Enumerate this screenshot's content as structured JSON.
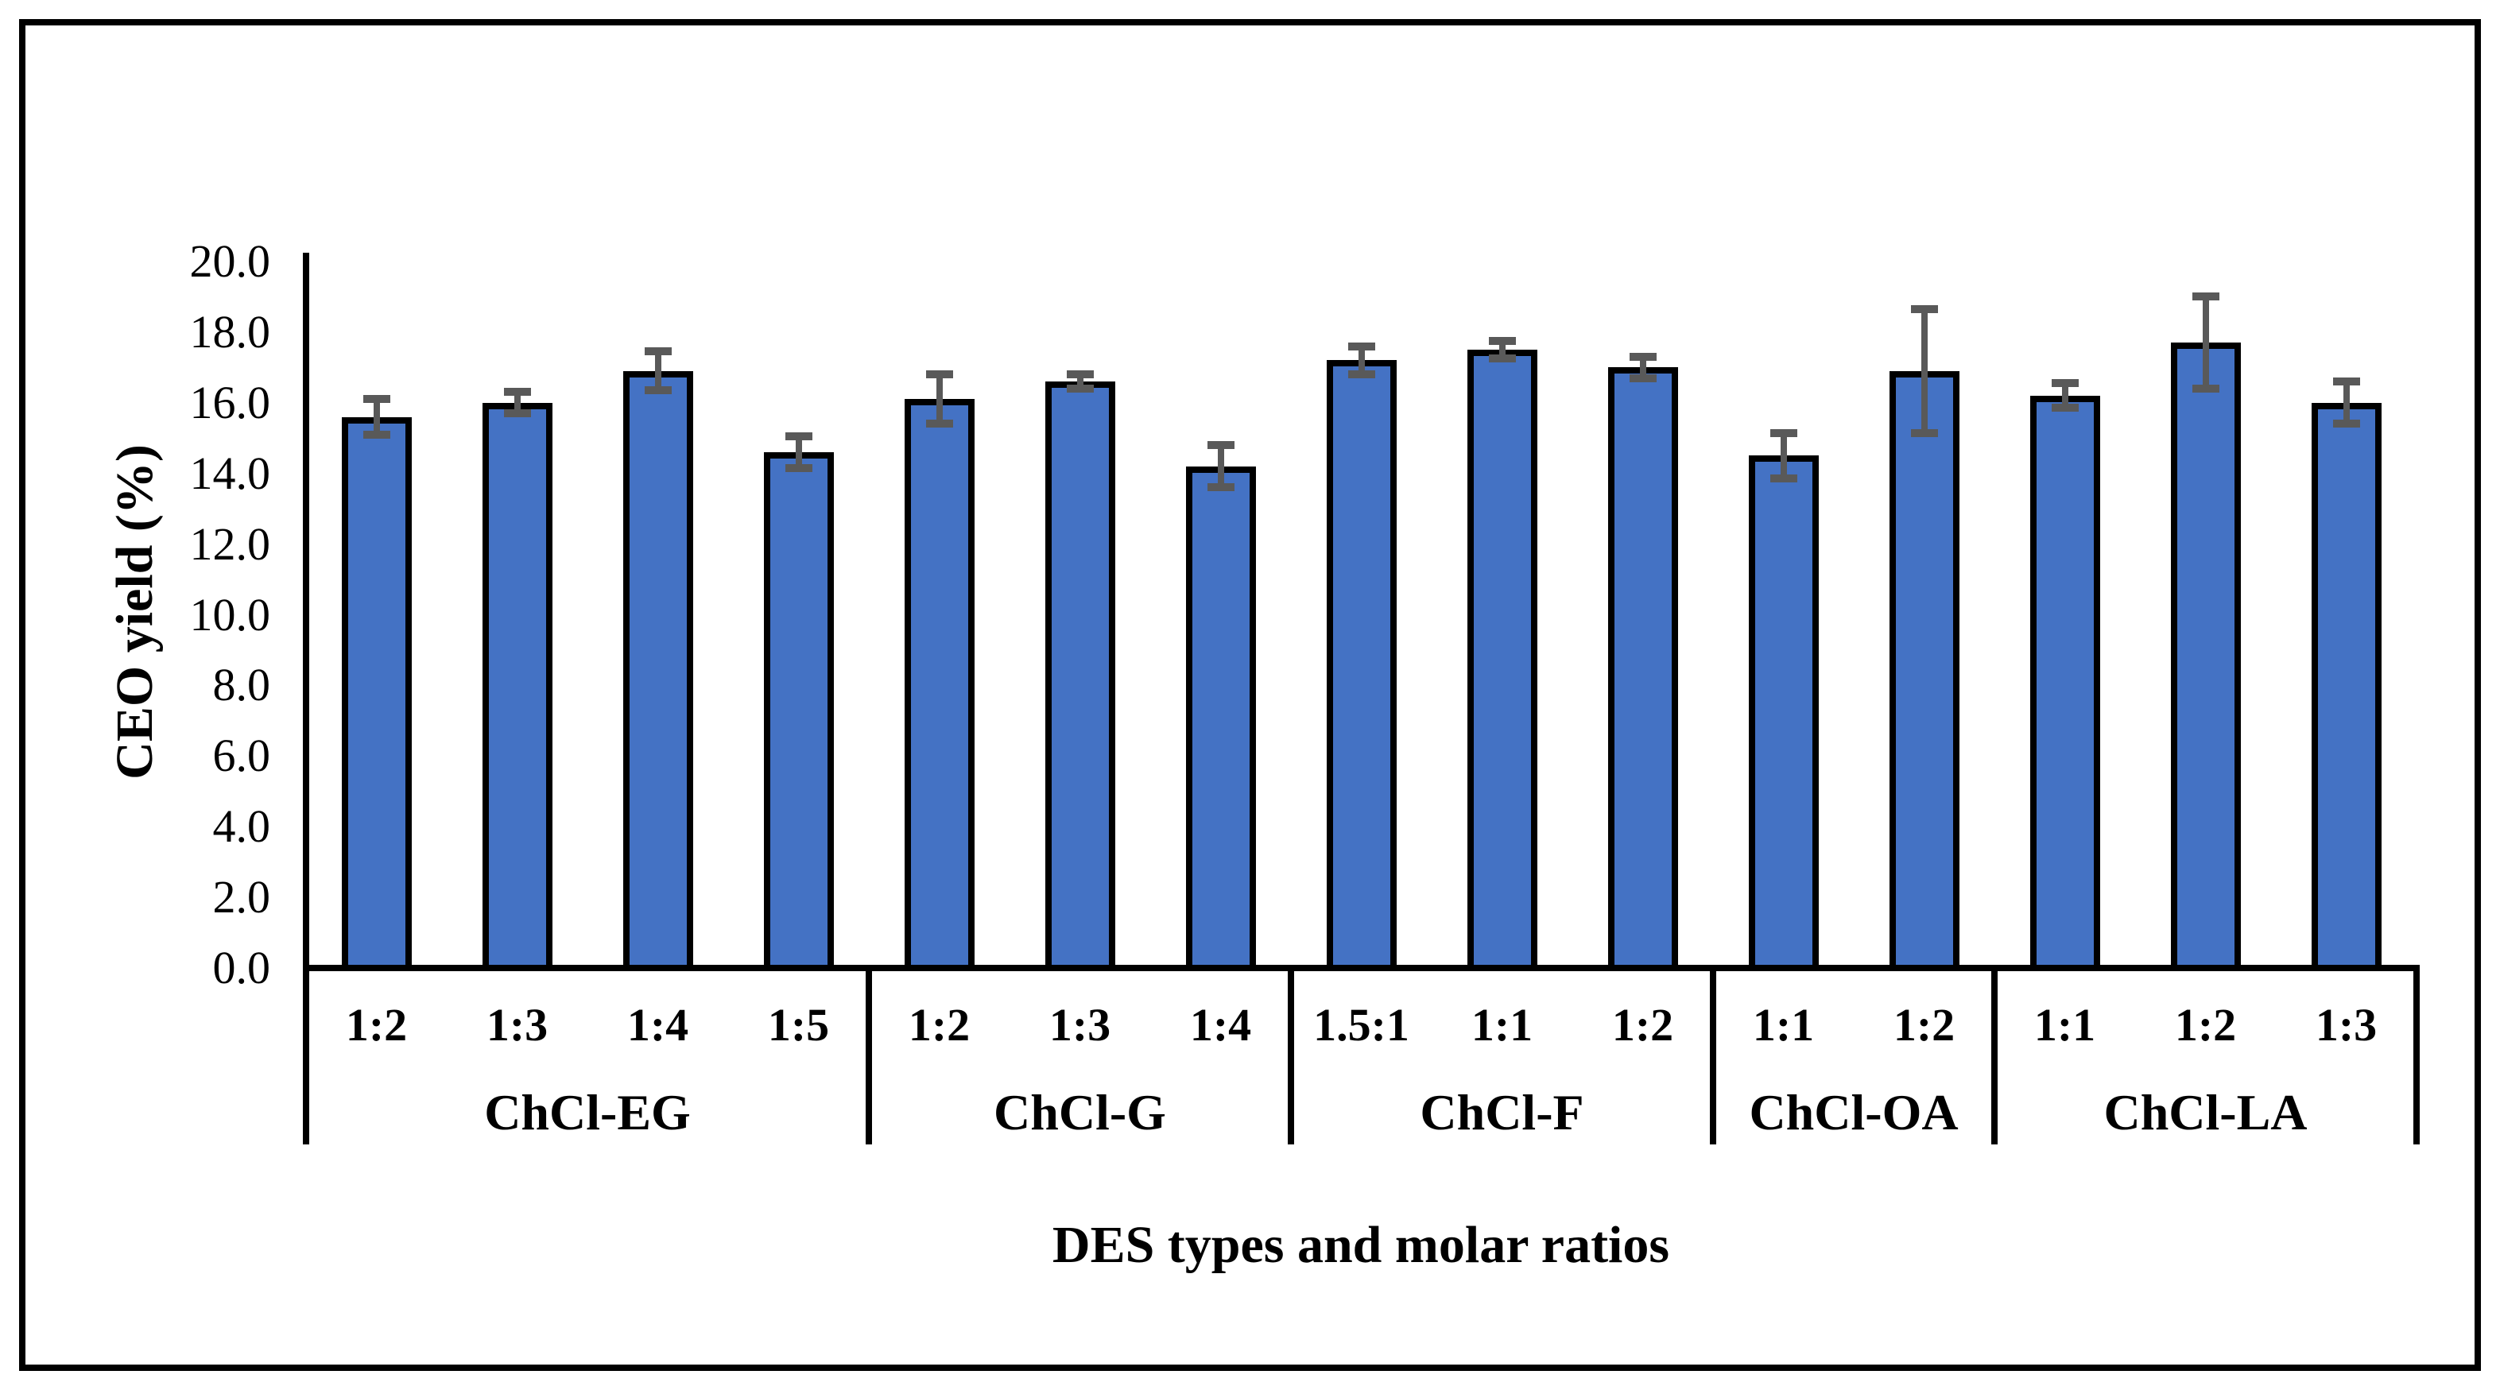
{
  "chart_data": {
    "type": "bar",
    "title": "",
    "xlabel": "DES types and molar ratios",
    "ylabel": "CEO yield (%)",
    "ylim": [
      0,
      20
    ],
    "ytick_step": 2.0,
    "ytick_labels": [
      "0.0",
      "2.0",
      "4.0",
      "6.0",
      "8.0",
      "10.0",
      "12.0",
      "14.0",
      "16.0",
      "18.0",
      "20.0"
    ],
    "grid": false,
    "legend": "none",
    "error_bars": "plus-minus, capped, drawn over bar tops",
    "categories": [
      "1:2",
      "1:3",
      "1:4",
      "1:5",
      "1:2",
      "1:3",
      "1:4",
      "1.5:1",
      "1:1",
      "1:2",
      "1:1",
      "1:2",
      "1:1",
      "1:2",
      "1:3"
    ],
    "groups": [
      {
        "name": "ChCl-EG",
        "ratios": [
          "1:2",
          "1:3",
          "1:4",
          "1:5"
        ],
        "values": [
          15.6,
          16.0,
          16.9,
          14.6
        ],
        "errors": [
          0.5,
          0.3,
          0.55,
          0.45
        ]
      },
      {
        "name": "ChCl-G",
        "ratios": [
          "1:2",
          "1:3",
          "1:4"
        ],
        "values": [
          16.1,
          16.6,
          14.2
        ],
        "errors": [
          0.7,
          0.2,
          0.6
        ]
      },
      {
        "name": "ChCl-F",
        "ratios": [
          "1.5:1",
          "1:1",
          "1:2"
        ],
        "values": [
          17.2,
          17.5,
          17.0
        ],
        "errors": [
          0.4,
          0.25,
          0.3
        ]
      },
      {
        "name": "ChCl-OA",
        "ratios": [
          "1:1",
          "1:2"
        ],
        "values": [
          14.5,
          16.9
        ],
        "errors": [
          0.65,
          1.75
        ]
      },
      {
        "name": "ChCl-LA",
        "ratios": [
          "1:1",
          "1:2",
          "1:3"
        ],
        "values": [
          16.2,
          17.7,
          16.0
        ],
        "errors": [
          0.35,
          1.3,
          0.6
        ]
      }
    ],
    "colors": {
      "bar_fill": "#4472C4",
      "bar_border": "#000000",
      "error_bar": "#595959",
      "axis_line": "#000000",
      "text": "#000000",
      "background": "#FFFFFF",
      "figure_border": "#000000"
    }
  }
}
